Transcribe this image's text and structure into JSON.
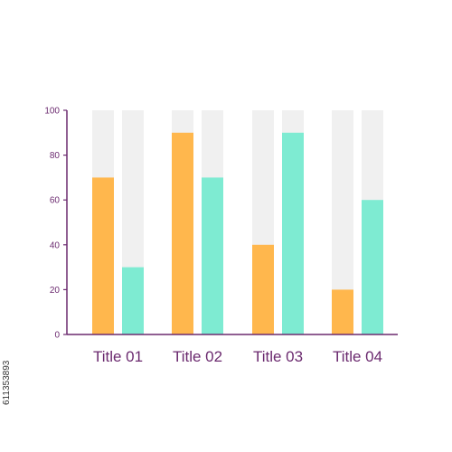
{
  "chart_data": {
    "type": "bar",
    "categories": [
      "Title 01",
      "Title 02",
      "Title 03",
      "Title 04"
    ],
    "series": [
      {
        "values": [
          70,
          90,
          40,
          20
        ],
        "color": "#ffb74d"
      },
      {
        "values": [
          30,
          70,
          90,
          60
        ],
        "color": "#7eebd2"
      }
    ],
    "ylim": [
      0,
      100
    ],
    "yticks": [
      0,
      20,
      40,
      60,
      80,
      100
    ],
    "track_color": "#f0f0f0",
    "axis_color": "#6b2a6f",
    "grid": false,
    "legend": "none"
  },
  "side_label": "611353893"
}
